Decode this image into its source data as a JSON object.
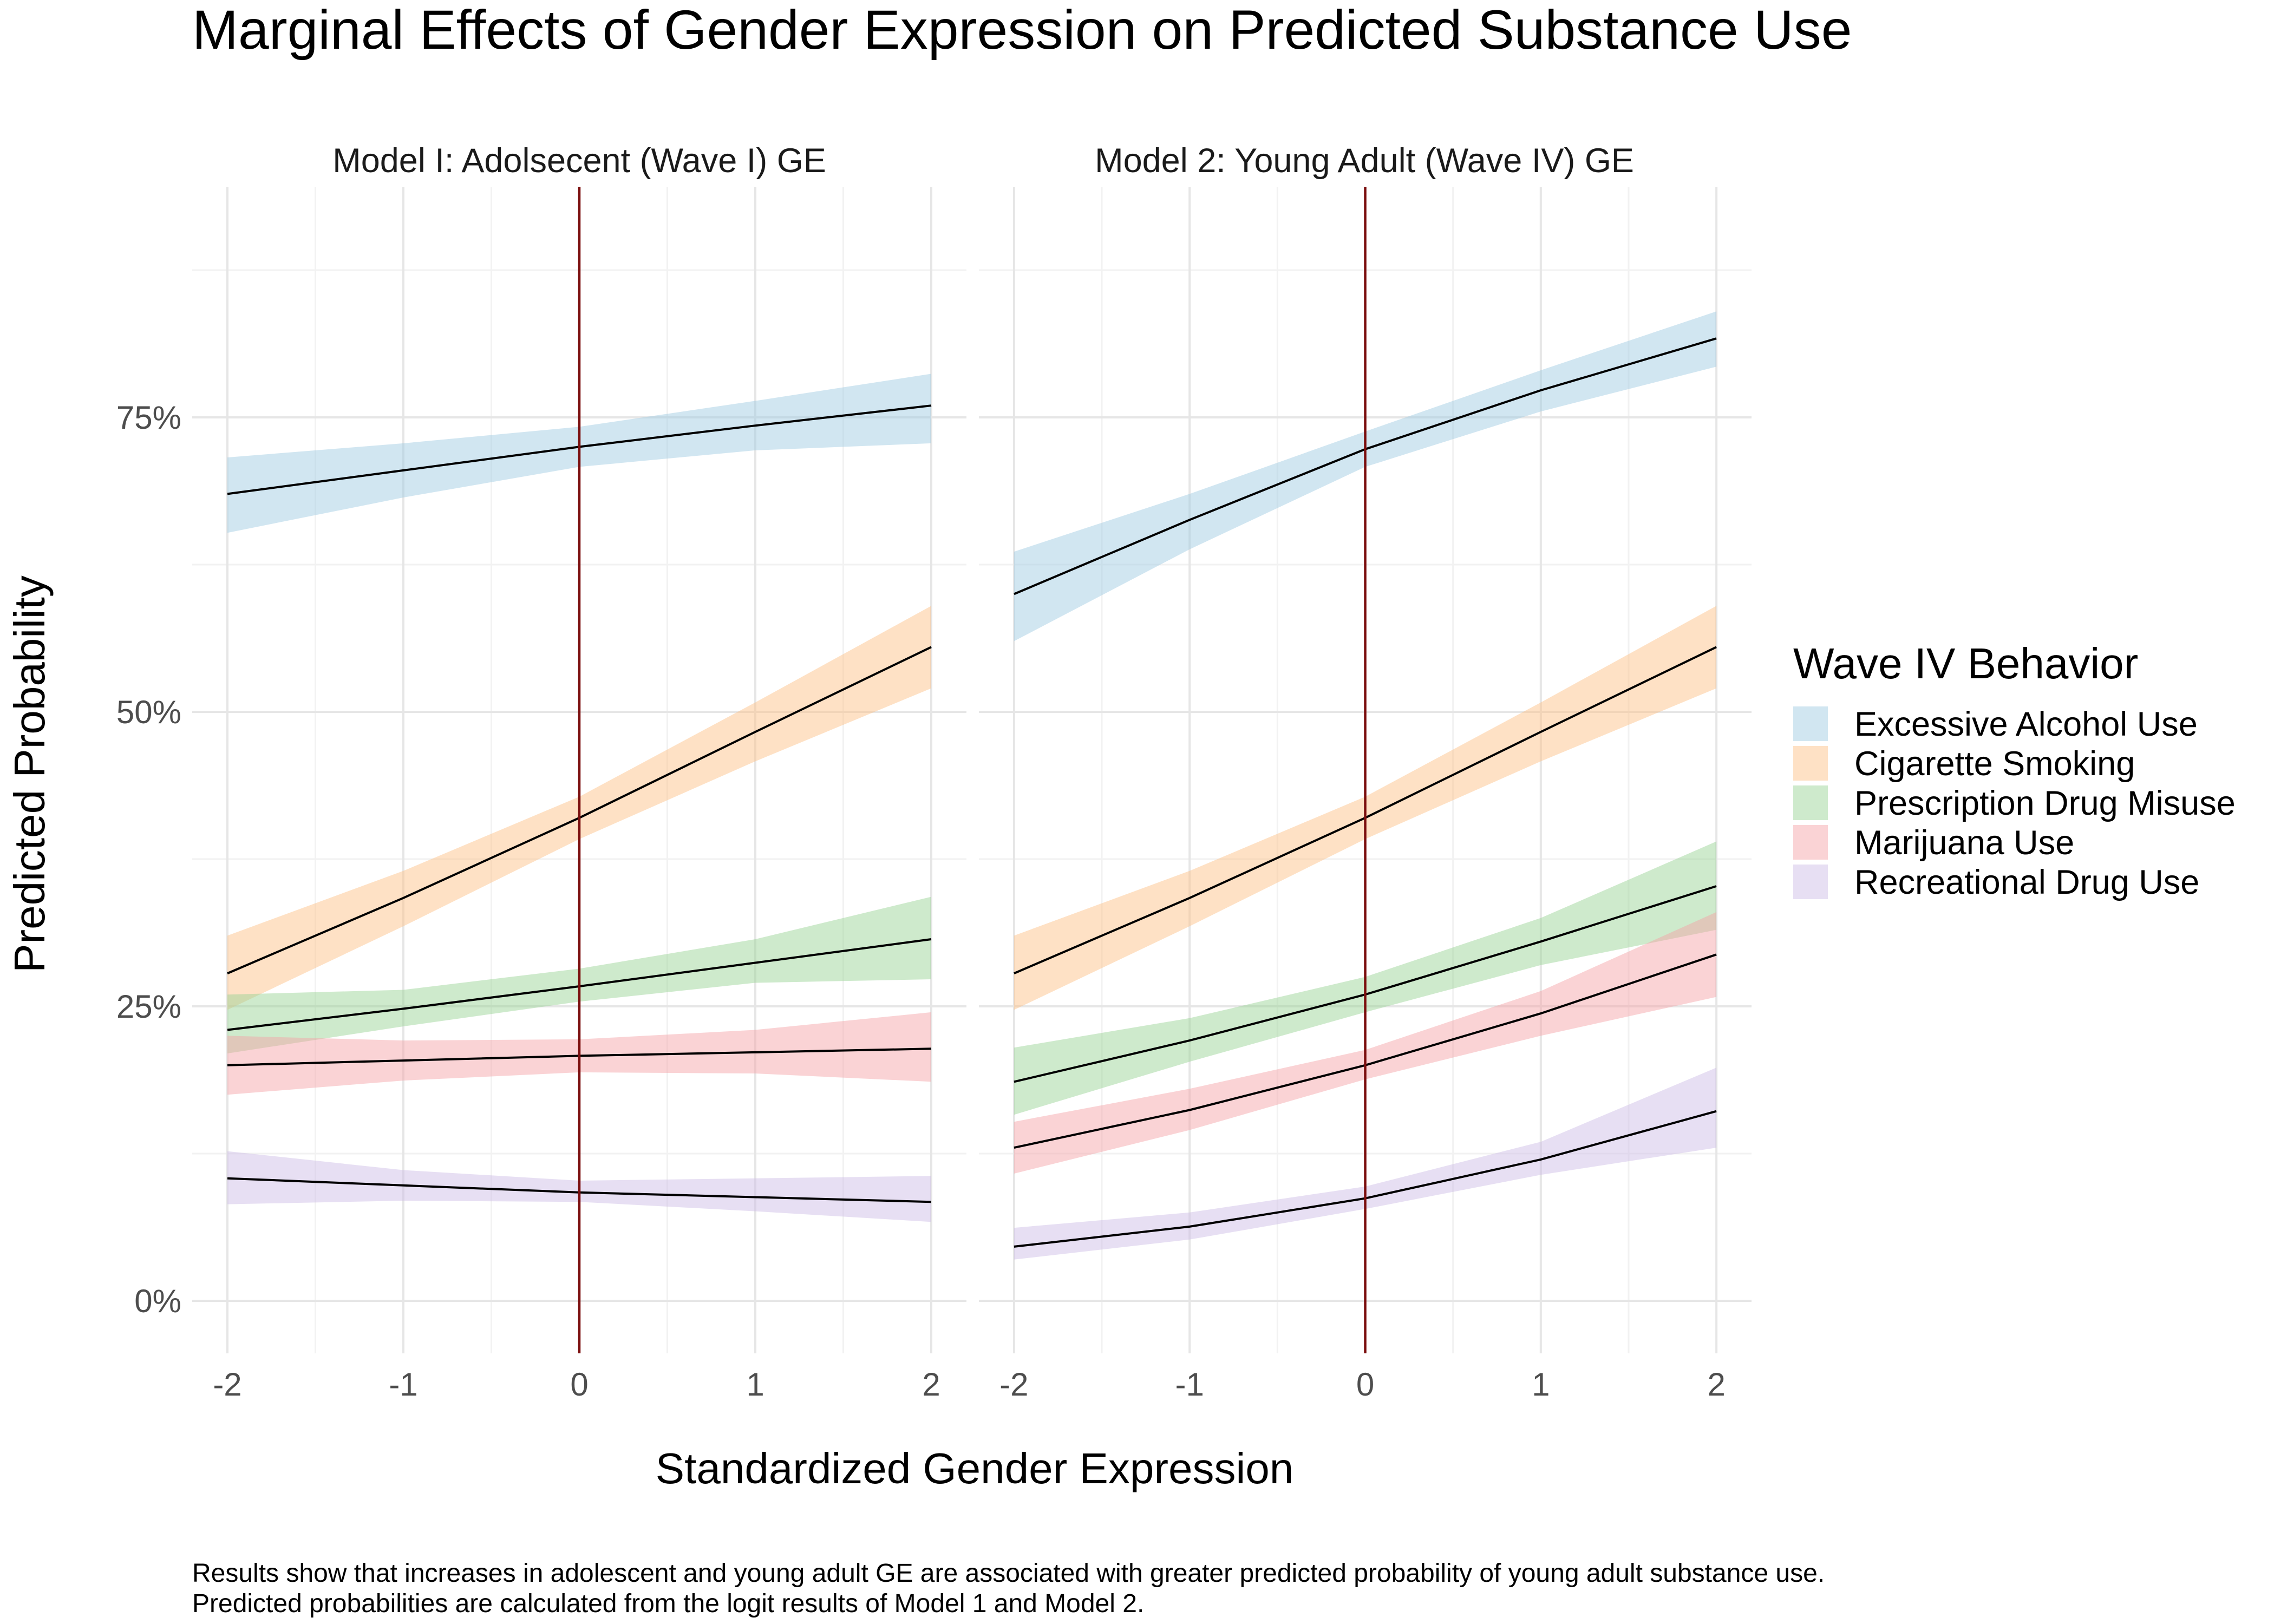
{
  "chart_data": {
    "type": "area",
    "title": "Marginal Effects of Gender Expression on Predicted Substance Use",
    "xlabel": "Standardized Gender Expression",
    "ylabel": "Predicted Probability",
    "x_ticks": [
      "-2",
      "-1",
      "0",
      "1",
      "2"
    ],
    "y_ticks": [
      "0%",
      "25%",
      "50%",
      "75%"
    ],
    "xlim": [
      -2.2,
      2.2
    ],
    "ylim": [
      -0.045,
      0.92
    ],
    "grid": true,
    "reference_line": {
      "x": 0,
      "color": "#7b0f0f"
    },
    "legend": {
      "title": "Wave IV Behavior",
      "position": "right",
      "entries": [
        {
          "name": "Excessive Alcohol Use",
          "color": "#9ecae1"
        },
        {
          "name": "Cigarette Smoking",
          "color": "#fdc086"
        },
        {
          "name": "Prescription Drug Misuse",
          "color": "#98d494"
        },
        {
          "name": "Marijuana Use",
          "color": "#f4a3a8"
        },
        {
          "name": "Recreational Drug Use",
          "color": "#cdbde6"
        }
      ]
    },
    "panels": [
      {
        "strip": "Model I: Adolsecent (Wave I) GE",
        "x": [
          -2,
          -1,
          0,
          1,
          2
        ],
        "series": [
          {
            "name": "Excessive Alcohol Use",
            "y": [
              0.685,
              0.705,
              0.725,
              0.743,
              0.76
            ],
            "lower": [
              0.652,
              0.682,
              0.708,
              0.722,
              0.728
            ],
            "upper": [
              0.716,
              0.728,
              0.742,
              0.764,
              0.787
            ]
          },
          {
            "name": "Cigarette Smoking",
            "y": [
              0.278,
              0.342,
              0.41,
              0.483,
              0.555
            ],
            "lower": [
              0.247,
              0.318,
              0.392,
              0.458,
              0.52
            ],
            "upper": [
              0.31,
              0.365,
              0.428,
              0.508,
              0.59
            ]
          },
          {
            "name": "Prescription Drug Misuse",
            "y": [
              0.23,
              0.248,
              0.267,
              0.287,
              0.307
            ],
            "lower": [
              0.21,
              0.233,
              0.254,
              0.27,
              0.273
            ],
            "upper": [
              0.26,
              0.264,
              0.282,
              0.307,
              0.343
            ]
          },
          {
            "name": "Marijuana Use",
            "y": [
              0.2,
              0.204,
              0.208,
              0.211,
              0.214
            ],
            "lower": [
              0.175,
              0.187,
              0.194,
              0.193,
              0.186
            ],
            "upper": [
              0.225,
              0.221,
              0.222,
              0.23,
              0.245
            ]
          },
          {
            "name": "Recreational Drug Use",
            "y": [
              0.104,
              0.098,
              0.092,
              0.088,
              0.084
            ],
            "lower": [
              0.082,
              0.085,
              0.084,
              0.076,
              0.067
            ],
            "upper": [
              0.127,
              0.111,
              0.102,
              0.104,
              0.106
            ]
          }
        ]
      },
      {
        "strip": "Model 2: Young Adult (Wave IV) GE",
        "x": [
          -2,
          -1,
          0,
          1,
          2
        ],
        "series": [
          {
            "name": "Excessive Alcohol Use",
            "y": [
              0.6,
              0.663,
              0.723,
              0.773,
              0.817
            ],
            "lower": [
              0.56,
              0.638,
              0.708,
              0.755,
              0.793
            ],
            "upper": [
              0.636,
              0.685,
              0.738,
              0.79,
              0.84
            ]
          },
          {
            "name": "Cigarette Smoking",
            "y": [
              0.278,
              0.342,
              0.41,
              0.483,
              0.555
            ],
            "lower": [
              0.247,
              0.318,
              0.392,
              0.458,
              0.52
            ],
            "upper": [
              0.31,
              0.365,
              0.428,
              0.508,
              0.59
            ]
          },
          {
            "name": "Prescription Drug Misuse",
            "y": [
              0.186,
              0.221,
              0.26,
              0.305,
              0.352
            ],
            "lower": [
              0.158,
              0.203,
              0.245,
              0.285,
              0.315
            ],
            "upper": [
              0.215,
              0.24,
              0.275,
              0.325,
              0.39
            ]
          },
          {
            "name": "Marijuana Use",
            "y": [
              0.13,
              0.162,
              0.2,
              0.244,
              0.294
            ],
            "lower": [
              0.108,
              0.145,
              0.188,
              0.225,
              0.258
            ],
            "upper": [
              0.152,
              0.18,
              0.213,
              0.263,
              0.33
            ]
          },
          {
            "name": "Recreational Drug Use",
            "y": [
              0.046,
              0.063,
              0.087,
              0.12,
              0.161
            ],
            "lower": [
              0.035,
              0.052,
              0.078,
              0.107,
              0.13
            ],
            "upper": [
              0.062,
              0.075,
              0.097,
              0.135,
              0.198
            ]
          }
        ]
      }
    ]
  },
  "caption": {
    "line1": "Results show that increases in adolescent and young adult GE are associated with greater predicted probability of young adult substance use.",
    "line2": "Predicted probabilities are calculated from the logit results of Model 1 and Model 2."
  }
}
